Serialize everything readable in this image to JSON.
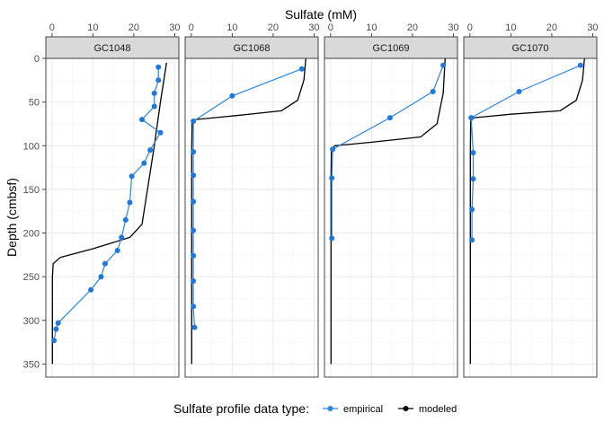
{
  "chart_data": {
    "type": "line",
    "xlabel": "Sulfate (mM)",
    "ylabel": "Depth (cmbsf)",
    "x_axis_position": "top",
    "y_reversed": true,
    "xlim": [
      -1.5,
      31
    ],
    "ylim": [
      0,
      365
    ],
    "xticks": [
      0,
      10,
      20,
      30
    ],
    "yticks": [
      0,
      50,
      100,
      150,
      200,
      250,
      300,
      350
    ],
    "grid": true,
    "legend": {
      "title": "Sulfate profile data type:",
      "position": "bottom",
      "entries": [
        {
          "label": "empirical",
          "color": "#2b86e6"
        },
        {
          "label": "modeled",
          "color": "#000000"
        }
      ]
    },
    "colors": {
      "empirical": "#2b86e6",
      "empirical_point": "#1f77e0",
      "modeled": "#000000",
      "strip_fill": "#d9d9d9",
      "grid_major": "#ebebeb",
      "grid_minor": "#f5f5f5"
    },
    "facets": [
      {
        "name": "GC1048",
        "empirical": [
          [
            26,
            10
          ],
          [
            26,
            25
          ],
          [
            25,
            40
          ],
          [
            25,
            55
          ],
          [
            22,
            70
          ],
          [
            26.5,
            85
          ],
          [
            24,
            105
          ],
          [
            22.5,
            120
          ],
          [
            19.5,
            135
          ],
          [
            19,
            165
          ],
          [
            18,
            185
          ],
          [
            17,
            205
          ],
          [
            16,
            220
          ],
          [
            13,
            235
          ],
          [
            12,
            250
          ],
          [
            9.5,
            265
          ],
          [
            1.5,
            303
          ],
          [
            1,
            310
          ],
          [
            0.5,
            323
          ]
        ],
        "modeled": [
          [
            28,
            5
          ],
          [
            26.5,
            50
          ],
          [
            25,
            100
          ],
          [
            22,
            190
          ],
          [
            19,
            205
          ],
          [
            10,
            218
          ],
          [
            2,
            228
          ],
          [
            0.3,
            235
          ],
          [
            0.1,
            250
          ],
          [
            0.1,
            350
          ]
        ]
      },
      {
        "name": "GC1068",
        "empirical": [
          [
            27,
            12
          ],
          [
            10,
            43
          ],
          [
            0.5,
            72
          ],
          [
            0.5,
            107
          ],
          [
            0.5,
            134
          ],
          [
            0.5,
            164
          ],
          [
            0.5,
            197
          ],
          [
            0.5,
            226
          ],
          [
            0.5,
            255
          ],
          [
            0.5,
            284
          ],
          [
            0.8,
            308
          ]
        ],
        "modeled": [
          [
            28,
            0
          ],
          [
            27.5,
            25
          ],
          [
            26,
            48
          ],
          [
            22,
            60
          ],
          [
            10,
            66
          ],
          [
            1,
            70
          ],
          [
            0.2,
            75
          ],
          [
            0.1,
            110
          ],
          [
            0.1,
            350
          ]
        ]
      },
      {
        "name": "GC1069",
        "empirical": [
          [
            27.5,
            8
          ],
          [
            25,
            38
          ],
          [
            14.5,
            68
          ],
          [
            0.5,
            104
          ],
          [
            0.3,
            137
          ],
          [
            0.3,
            206
          ]
        ],
        "modeled": [
          [
            28,
            0
          ],
          [
            27.5,
            40
          ],
          [
            26,
            75
          ],
          [
            22,
            90
          ],
          [
            10,
            96
          ],
          [
            1,
            100
          ],
          [
            0.2,
            105
          ],
          [
            0.1,
            140
          ],
          [
            0.1,
            350
          ]
        ]
      },
      {
        "name": "GC1070",
        "empirical": [
          [
            27,
            8
          ],
          [
            12,
            38
          ],
          [
            0.3,
            68
          ],
          [
            0.8,
            108
          ],
          [
            0.8,
            138
          ],
          [
            0.5,
            173
          ],
          [
            0.5,
            208
          ]
        ],
        "modeled": [
          [
            28,
            0
          ],
          [
            27.5,
            25
          ],
          [
            26,
            48
          ],
          [
            22,
            60
          ],
          [
            10,
            64
          ],
          [
            1,
            68
          ],
          [
            0.2,
            72
          ],
          [
            0.1,
            110
          ],
          [
            0.1,
            350
          ]
        ]
      }
    ]
  }
}
